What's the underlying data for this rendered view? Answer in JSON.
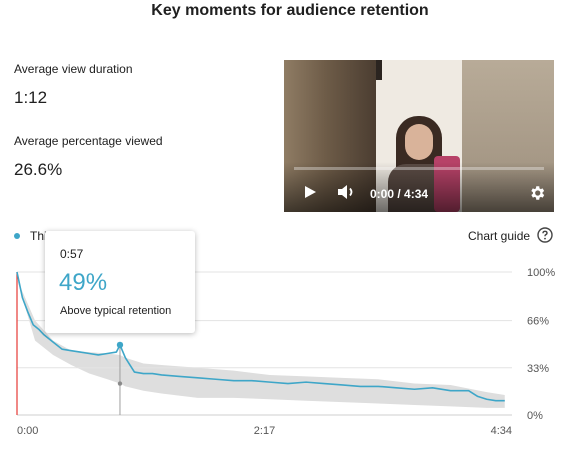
{
  "title": "Key moments for audience retention",
  "stats": [
    {
      "label": "Average view duration",
      "value": "1:12"
    },
    {
      "label": "Average percentage viewed",
      "value": "26.6%"
    }
  ],
  "video": {
    "time_display": "0:00 / 4:34",
    "progress": 0,
    "controls": [
      "play-icon",
      "volume-icon",
      "gear-icon"
    ]
  },
  "legend": {
    "label": "This video",
    "color": "#3ea6c8"
  },
  "chart_guide_label": "Chart guide",
  "tooltip": {
    "time": "0:57",
    "value": "49%",
    "note": "Above typical retention"
  },
  "chart_data": {
    "type": "line",
    "x_unit": "seconds",
    "x_ticks": [
      {
        "value": 0,
        "label": "0:00"
      },
      {
        "value": 137,
        "label": "2:17"
      },
      {
        "value": 274,
        "label": "4:34"
      }
    ],
    "y_ticks": [
      {
        "value": 0,
        "label": "0%"
      },
      {
        "value": 33,
        "label": "33%"
      },
      {
        "value": 66,
        "label": "66%"
      },
      {
        "value": 100,
        "label": "100%"
      }
    ],
    "xlim": [
      0,
      274
    ],
    "ylim": [
      0,
      100
    ],
    "grid": true,
    "series": [
      {
        "color": "#3ea6c8",
        "x": [
          0,
          3,
          6,
          9,
          12,
          15,
          20,
          25,
          30,
          35,
          40,
          45,
          50,
          55,
          57,
          60,
          65,
          70,
          75,
          80,
          90,
          100,
          110,
          120,
          130,
          140,
          150,
          160,
          170,
          180,
          190,
          200,
          210,
          220,
          230,
          240,
          250,
          255,
          260,
          265,
          270
        ],
        "y": [
          100,
          82,
          72,
          63,
          60,
          56,
          51,
          46,
          45,
          44,
          43,
          42,
          43,
          44,
          49,
          40,
          30,
          29,
          29,
          28,
          27,
          26,
          25,
          24,
          24,
          23,
          22,
          23,
          22,
          21,
          20,
          20,
          19,
          18,
          19,
          17,
          17,
          13,
          11,
          10,
          10
        ]
      }
    ],
    "typical_band": {
      "color": "#dedede",
      "x": [
        0,
        10,
        20,
        30,
        40,
        50,
        57,
        60,
        70,
        80,
        100,
        120,
        140,
        160,
        180,
        200,
        220,
        240,
        260,
        270
      ],
      "upper": [
        95,
        66,
        52,
        45,
        44,
        43,
        42,
        40,
        36,
        35,
        33,
        31,
        28,
        27,
        26,
        25,
        22,
        21,
        16,
        14
      ],
      "lower": [
        95,
        52,
        42,
        35,
        29,
        25,
        22,
        20,
        17,
        15,
        12,
        12,
        11,
        10,
        9,
        8,
        7,
        6,
        5,
        5
      ]
    },
    "marker": {
      "x": 57,
      "y": 49,
      "typical_y": 22
    }
  }
}
